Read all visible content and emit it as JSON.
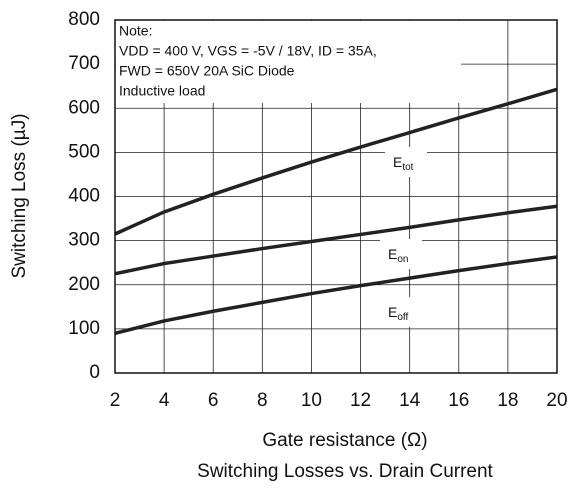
{
  "chart_data": {
    "type": "line",
    "title": "Switching Losses vs. Drain Current",
    "x_label": "Gate resistance  (Ω)",
    "y_label": "Switching Loss (µJ)",
    "note": [
      "Note:",
      "VDD = 400 V, VGS = -5V / 18V, ID = 35A,",
      "FWD = 650V 20A SiC Diode",
      "Inductive load"
    ],
    "x": [
      2,
      4,
      6,
      8,
      10,
      12,
      14,
      16,
      18,
      20
    ],
    "series": [
      {
        "name": "Etot",
        "color": "#222222",
        "values": [
          315,
          365,
          405,
          442,
          478,
          512,
          545,
          578,
          610,
          643
        ]
      },
      {
        "name": "Eon",
        "color": "#222222",
        "values": [
          225,
          248,
          265,
          282,
          298,
          314,
          330,
          347,
          363,
          378
        ]
      },
      {
        "name": "Eoff",
        "color": "#222222",
        "values": [
          90,
          118,
          140,
          160,
          180,
          198,
          215,
          232,
          248,
          263
        ]
      }
    ],
    "xlim": [
      2,
      20
    ],
    "xticks": [
      2,
      4,
      6,
      8,
      10,
      12,
      14,
      16,
      18,
      20
    ],
    "ylim": [
      0,
      800
    ],
    "yticks": [
      0,
      100,
      200,
      300,
      400,
      500,
      600,
      700,
      800
    ],
    "grid": true
  }
}
